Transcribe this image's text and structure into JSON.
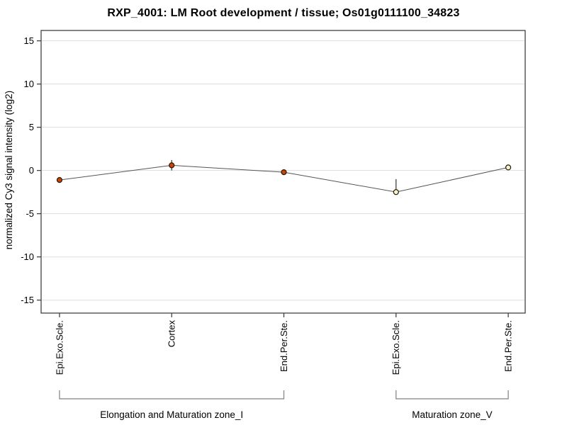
{
  "chart_data": {
    "type": "line",
    "title": "RXP_4001: LM Root development / tissue; Os01g0111100_34823",
    "ylabel": "normalized Cy3 signal intensity (log2)",
    "xlabel": "",
    "ylim": [
      -16.5,
      16.2
    ],
    "yticks": [
      15,
      10,
      5,
      0,
      -5,
      -10,
      -15
    ],
    "grid": true,
    "legend": "none",
    "categories": [
      "Epi.Exo.Scle.",
      "Cortex",
      "End.Per.Ste.",
      "Epi.Exo.Scle.",
      "End.Per.Ste."
    ],
    "series": [
      {
        "name": "Cy3 signal intensity",
        "values": [
          -1.1,
          0.6,
          -0.2,
          -2.5,
          0.35
        ],
        "error_low": [
          -1.1,
          0.0,
          -0.45,
          -2.7,
          0.35
        ],
        "error_high": [
          -1.1,
          1.2,
          0.1,
          -1.0,
          0.35
        ],
        "marker_styles": [
          "filled",
          "filled",
          "filled",
          "open",
          "open"
        ]
      }
    ],
    "groups": [
      {
        "label": "Elongation and Maturation zone_I",
        "start": 0,
        "end": 2
      },
      {
        "label": "Maturation zone_V",
        "start": 3,
        "end": 4
      }
    ],
    "colors": {
      "marker_filled": "#cc4400",
      "marker_open": "#f7f3c9",
      "marker_stroke": "#26160a",
      "line": "#555555",
      "grid": "#dddddd",
      "axis": "#333333",
      "bracket": "#808080",
      "error_bar": "#333333",
      "text": "#000000"
    }
  }
}
